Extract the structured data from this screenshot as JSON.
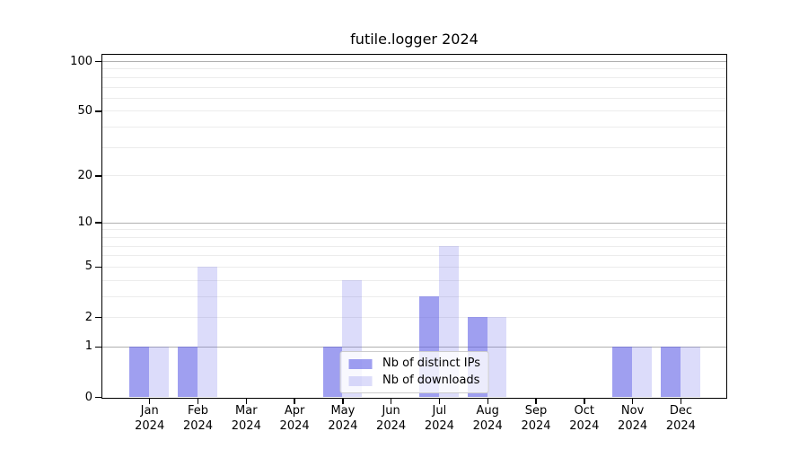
{
  "chart_data": {
    "type": "bar",
    "title": "futile.logger 2024",
    "xlabel": "",
    "ylabel": "",
    "year": "2024",
    "categories": [
      "Jan",
      "Feb",
      "Mar",
      "Apr",
      "May",
      "Jun",
      "Jul",
      "Aug",
      "Sep",
      "Oct",
      "Nov",
      "Dec"
    ],
    "series": [
      {
        "name": "Nb of distinct IPs",
        "color": "rgba(95,95,230,0.60)",
        "values": [
          1,
          1,
          0,
          0,
          1,
          0,
          3,
          2,
          0,
          0,
          1,
          1
        ]
      },
      {
        "name": "Nb of downloads",
        "color": "rgba(95,95,230,0.22)",
        "values": [
          1,
          5,
          0,
          0,
          4,
          0,
          7,
          2,
          0,
          0,
          1,
          1
        ]
      }
    ],
    "y_scale": "log1p",
    "ylim": [
      0,
      113
    ],
    "y_ticks_labeled": [
      0,
      1,
      2,
      5,
      10,
      20,
      50,
      100
    ],
    "y_gridlines_major": [
      1,
      10,
      100
    ],
    "y_gridlines_minor": [
      2,
      3,
      4,
      5,
      6,
      7,
      8,
      9,
      20,
      30,
      40,
      50,
      60,
      70,
      80,
      90
    ],
    "grid": true,
    "legend_position": "lower center"
  },
  "colors": {
    "major_grid": "#b0b0b0",
    "minor_grid": "#ececec",
    "spine": "#000000",
    "background": "#ffffff",
    "text": "#000000",
    "legend_border": "#cccccc"
  }
}
